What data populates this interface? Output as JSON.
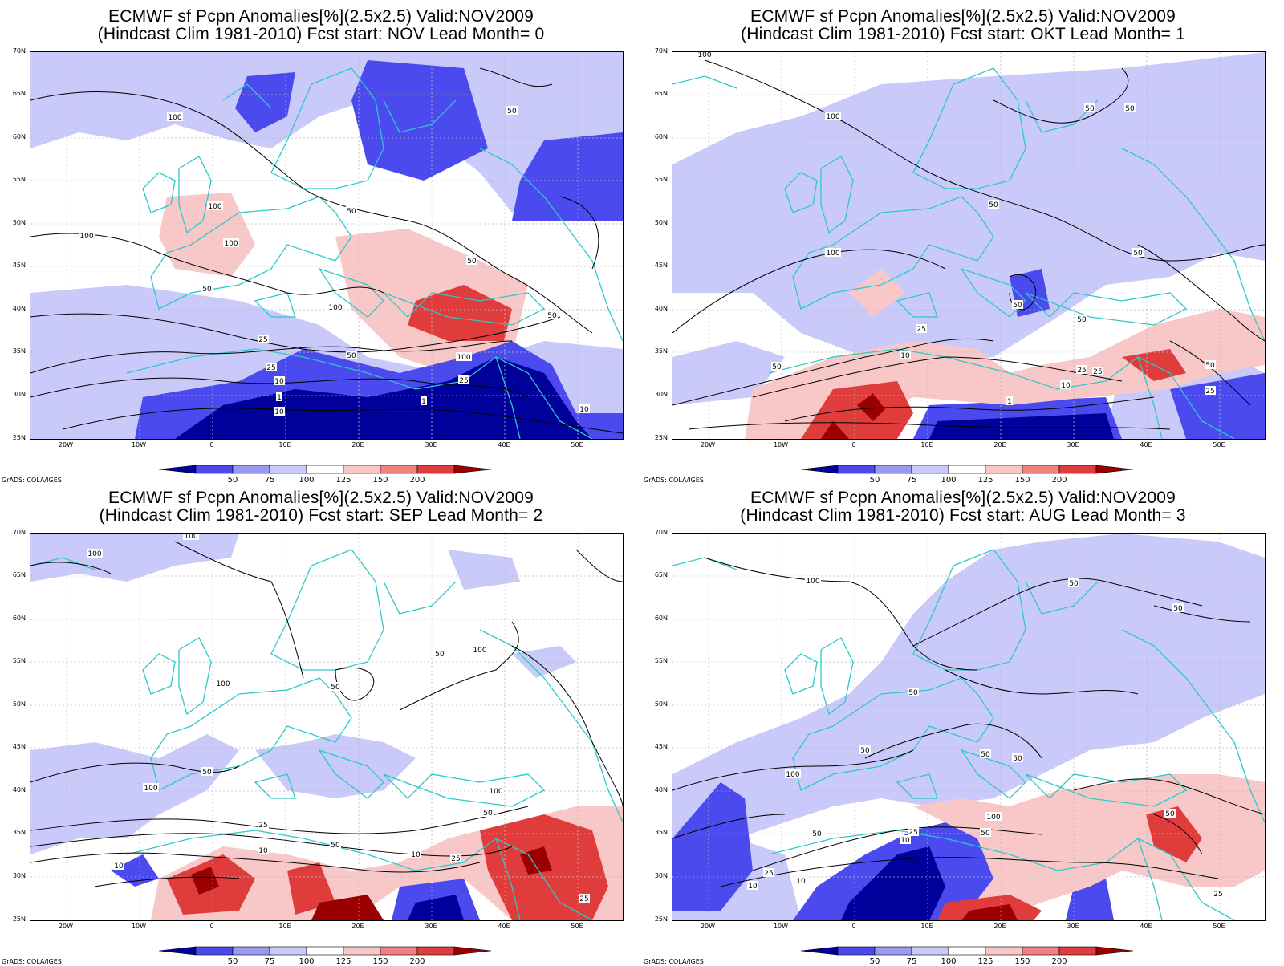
{
  "figure": {
    "credit": "GrADS: COLA/IGES",
    "lat_labels": [
      "70N",
      "65N",
      "60N",
      "55N",
      "50N",
      "45N",
      "40N",
      "35N",
      "30N",
      "25N"
    ],
    "lon_labels": [
      "20W",
      "10W",
      "0",
      "10E",
      "20E",
      "30E",
      "40E",
      "50E"
    ],
    "colorbar": {
      "labels": [
        "50",
        "75",
        "100",
        "125",
        "150",
        "200"
      ],
      "colors": [
        "#00009a",
        "#4a4aee",
        "#9a9af0",
        "#cacafa",
        "#ffffff",
        "#f8c8c8",
        "#f08282",
        "#e03c3c",
        "#9a0000"
      ]
    },
    "colors": {
      "coast": "#2ec8c8",
      "contour": "#000000",
      "grid": "#bbbbbb"
    }
  },
  "panels": [
    {
      "title_line1": "ECMWF sf Pcpn Anomalies[%](2.5x2.5) Valid:NOV2009",
      "title_line2": "(Hindcast Clim 1981-2010) Fcst start: NOV  Lead Month= 0",
      "contour_labels": [
        "100",
        "100",
        "100",
        "100",
        "50",
        "50",
        "50",
        "25",
        "25",
        "10",
        "10",
        "1",
        "1",
        "50",
        "100",
        "50",
        "50",
        "100",
        "25",
        "10"
      ]
    },
    {
      "title_line1": "ECMWF sf Pcpn Anomalies[%](2.5x2.5) Valid:NOV2009",
      "title_line2": "(Hindcast Clim 1981-2010) Fcst start: OKT  Lead Month= 1",
      "contour_labels": [
        "100",
        "100",
        "100",
        "50",
        "50",
        "50",
        "50",
        "50",
        "50",
        "25",
        "10",
        "1",
        "50",
        "25",
        "25",
        "10",
        "50",
        "25"
      ]
    },
    {
      "title_line1": "ECMWF sf Pcpn Anomalies[%](2.5x2.5) Valid:NOV2009",
      "title_line2": "(Hindcast Clim 1981-2010) Fcst start: SEP  Lead Month= 2",
      "contour_labels": [
        "100",
        "100",
        "100",
        "50",
        "100",
        "100",
        "50",
        "50",
        "50",
        "25",
        "10",
        "10",
        "50",
        "100",
        "10",
        "25",
        "25"
      ]
    },
    {
      "title_line1": "ECMWF sf Pcpn Anomalies[%](2.5x2.5) Valid:NOV2009",
      "title_line2": "(Hindcast Clim 1981-2010) Fcst start: AUG  Lead Month= 3",
      "contour_labels": [
        "100",
        "50",
        "50",
        "50",
        "100",
        "50",
        "100",
        "50",
        "50",
        "50",
        "25",
        "10",
        "10",
        "50",
        "25",
        "10",
        "25",
        "50"
      ]
    }
  ]
}
